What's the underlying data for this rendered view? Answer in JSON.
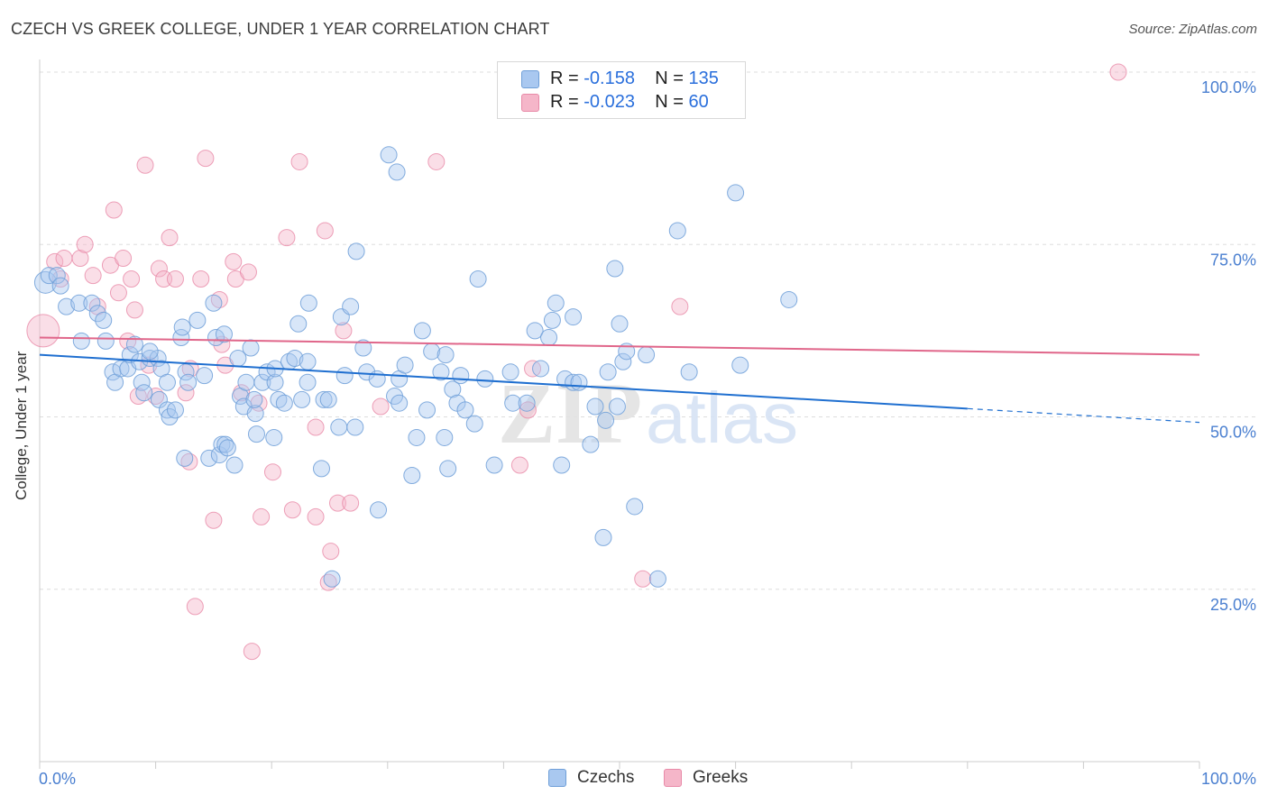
{
  "header": {
    "title": "CZECH VS GREEK COLLEGE, UNDER 1 YEAR CORRELATION CHART",
    "source": "Source: ZipAtlas.com"
  },
  "legend_top": {
    "czechs": {
      "r_label": "R = ",
      "r_value": "-0.158",
      "n_label": "N = ",
      "n_value": "135"
    },
    "greeks": {
      "r_label": "R = ",
      "r_value": "-0.023",
      "n_label": "N = ",
      "n_value": "60"
    }
  },
  "legend_bottom": {
    "czechs": "Czechs",
    "greeks": "Greeks"
  },
  "watermark": {
    "zip": "ZIP",
    "atlas": "atlas"
  },
  "colors": {
    "czech_fill": "#a9c8f0",
    "czech_stroke": "#6f9fd8",
    "czech_line": "#1f6fd0",
    "greek_fill": "#f5b6c9",
    "greek_stroke": "#e88aa8",
    "greek_line": "#e0668a",
    "tick_label": "#4a7fd0",
    "grid": "#dddddd"
  },
  "chart_data": {
    "type": "scatter",
    "title": "CZECH VS GREEK COLLEGE, UNDER 1 YEAR CORRELATION CHART",
    "xlabel": "",
    "ylabel": "College, Under 1 year",
    "xlim": [
      0,
      100
    ],
    "ylim": [
      0,
      100
    ],
    "x_tick_labels": [
      {
        "value": 0,
        "label": "0.0%"
      },
      {
        "value": 100,
        "label": "100.0%"
      }
    ],
    "y_tick_labels": [
      {
        "value": 25,
        "label": "25.0%"
      },
      {
        "value": 50,
        "label": "50.0%"
      },
      {
        "value": 75,
        "label": "75.0%"
      },
      {
        "value": 100,
        "label": "100.0%"
      }
    ],
    "series": [
      {
        "name": "Czechs",
        "r": -0.158,
        "n": 135,
        "trend": {
          "x0": 0,
          "y0": 59.0,
          "x1": 80,
          "y1": 51.2,
          "dash_to_x": 100,
          "dash_to_y": 49.2
        },
        "points": [
          [
            0.5,
            69.5
          ],
          [
            0.8,
            70.5
          ],
          [
            1.5,
            70.5
          ],
          [
            1.8,
            69
          ],
          [
            2.3,
            66
          ],
          [
            3.4,
            66.5
          ],
          [
            4.5,
            66.5
          ],
          [
            5,
            65
          ],
          [
            5.5,
            64
          ],
          [
            3.6,
            61
          ],
          [
            5.7,
            61
          ],
          [
            6.3,
            56.5
          ],
          [
            6.5,
            55
          ],
          [
            7,
            57
          ],
          [
            7.6,
            57
          ],
          [
            7.8,
            59
          ],
          [
            8.2,
            60.5
          ],
          [
            8.6,
            58
          ],
          [
            8.8,
            55
          ],
          [
            9,
            53.5
          ],
          [
            9.5,
            58.5
          ],
          [
            10.2,
            58.5
          ],
          [
            10.5,
            57
          ],
          [
            10.3,
            52.5
          ],
          [
            11,
            55
          ],
          [
            11,
            51
          ],
          [
            11.2,
            50
          ],
          [
            11.7,
            51
          ],
          [
            12.2,
            61.5
          ],
          [
            12.3,
            63
          ],
          [
            12.6,
            56.5
          ],
          [
            12.8,
            55
          ],
          [
            13.6,
            64
          ],
          [
            14.2,
            56
          ],
          [
            14.6,
            44
          ],
          [
            15,
            66.5
          ],
          [
            15.2,
            61.5
          ],
          [
            15.5,
            44.5
          ],
          [
            15.7,
            46
          ],
          [
            15.9,
            62
          ],
          [
            16,
            46
          ],
          [
            16.2,
            45.5
          ],
          [
            16.8,
            43
          ],
          [
            17.1,
            58.5
          ],
          [
            17.3,
            53
          ],
          [
            17.6,
            51.5
          ],
          [
            18.2,
            60
          ],
          [
            17.8,
            55
          ],
          [
            18.6,
            50.5
          ],
          [
            18.7,
            47.5
          ],
          [
            19.2,
            55
          ],
          [
            19.6,
            56.5
          ],
          [
            20.2,
            47
          ],
          [
            20.3,
            55
          ],
          [
            20.6,
            52.5
          ],
          [
            20.3,
            57
          ],
          [
            21.1,
            52
          ],
          [
            21.5,
            58
          ],
          [
            22,
            58.5
          ],
          [
            22.3,
            63.5
          ],
          [
            22.6,
            52.5
          ],
          [
            23.1,
            58
          ],
          [
            23.1,
            55
          ],
          [
            23.2,
            66.5
          ],
          [
            24.3,
            42.5
          ],
          [
            24.5,
            52.5
          ],
          [
            24.9,
            52.5
          ],
          [
            25.2,
            26.5
          ],
          [
            25.8,
            48.5
          ],
          [
            26,
            64.5
          ],
          [
            26.3,
            56
          ],
          [
            26.8,
            66
          ],
          [
            27.3,
            74
          ],
          [
            27.9,
            60
          ],
          [
            28.2,
            56.5
          ],
          [
            29.1,
            55.5
          ],
          [
            29.2,
            36.5
          ],
          [
            30.1,
            88
          ],
          [
            30.6,
            53
          ],
          [
            31,
            52
          ],
          [
            30.8,
            85.5
          ],
          [
            31,
            55.5
          ],
          [
            31.5,
            57.5
          ],
          [
            32.1,
            41.5
          ],
          [
            32.5,
            47
          ],
          [
            33,
            62.5
          ],
          [
            33.4,
            51
          ],
          [
            33.8,
            59.5
          ],
          [
            34.6,
            56.5
          ],
          [
            34.9,
            47
          ],
          [
            35.2,
            42.5
          ],
          [
            35.6,
            54
          ],
          [
            36,
            52
          ],
          [
            36.3,
            56
          ],
          [
            36.7,
            51
          ],
          [
            37.5,
            49
          ],
          [
            37.8,
            70
          ],
          [
            38.4,
            55.5
          ],
          [
            39.2,
            43
          ],
          [
            40.6,
            56.5
          ],
          [
            40.8,
            52
          ],
          [
            42.7,
            62.5
          ],
          [
            43.2,
            57
          ],
          [
            43.9,
            61.5
          ],
          [
            44.2,
            64
          ],
          [
            44.5,
            66.5
          ],
          [
            45,
            43
          ],
          [
            45.3,
            55.5
          ],
          [
            46,
            64.5
          ],
          [
            46,
            55
          ],
          [
            47.5,
            46
          ],
          [
            47.9,
            51.5
          ],
          [
            48.8,
            49.5
          ],
          [
            49,
            56.5
          ],
          [
            49.8,
            51.5
          ],
          [
            48.6,
            32.5
          ],
          [
            49.6,
            71.5
          ],
          [
            50,
            63.5
          ],
          [
            50.3,
            58
          ],
          [
            50.6,
            59.5
          ],
          [
            51.3,
            37
          ],
          [
            52.3,
            59
          ],
          [
            53.3,
            26.5
          ],
          [
            55,
            77
          ],
          [
            56,
            56.5
          ],
          [
            60,
            82.5
          ],
          [
            60.4,
            57.5
          ],
          [
            64.6,
            67
          ],
          [
            12.5,
            44
          ],
          [
            18.5,
            52.5
          ],
          [
            27.2,
            48.5
          ],
          [
            35,
            59
          ],
          [
            42,
            52
          ],
          [
            46.5,
            55
          ],
          [
            9.5,
            59.5
          ]
        ]
      },
      {
        "name": "Greeks",
        "r": -0.023,
        "n": 60,
        "trend": {
          "x0": 0,
          "y0": 61.5,
          "x1": 100,
          "y1": 59.0
        },
        "points": [
          [
            0.3,
            62.5
          ],
          [
            1.3,
            72.5
          ],
          [
            1.8,
            70
          ],
          [
            2.1,
            73
          ],
          [
            3.5,
            73
          ],
          [
            3.9,
            75
          ],
          [
            4.6,
            70.5
          ],
          [
            5,
            66
          ],
          [
            6.4,
            80
          ],
          [
            6.1,
            72
          ],
          [
            6.8,
            68
          ],
          [
            7.2,
            73
          ],
          [
            7.6,
            61
          ],
          [
            7.9,
            70
          ],
          [
            8.2,
            65.5
          ],
          [
            8.5,
            53
          ],
          [
            9.1,
            86.5
          ],
          [
            9.4,
            57.5
          ],
          [
            10,
            53
          ],
          [
            10.3,
            71.5
          ],
          [
            10.7,
            70
          ],
          [
            11.2,
            76
          ],
          [
            11.7,
            70
          ],
          [
            12.6,
            53.5
          ],
          [
            13,
            57
          ],
          [
            12.9,
            43.5
          ],
          [
            13.4,
            22.5
          ],
          [
            13.9,
            70
          ],
          [
            14.3,
            87.5
          ],
          [
            15,
            35
          ],
          [
            15.5,
            67
          ],
          [
            15.7,
            60.5
          ],
          [
            16,
            57.5
          ],
          [
            16.7,
            72.5
          ],
          [
            16.9,
            70
          ],
          [
            17.4,
            53.5
          ],
          [
            18,
            71
          ],
          [
            18.3,
            16
          ],
          [
            18.9,
            52
          ],
          [
            19.1,
            35.5
          ],
          [
            20.1,
            42
          ],
          [
            21.3,
            76
          ],
          [
            21.8,
            36.5
          ],
          [
            22.4,
            87
          ],
          [
            23.8,
            35.5
          ],
          [
            23.8,
            48.5
          ],
          [
            24.6,
            77
          ],
          [
            24.9,
            26
          ],
          [
            25.1,
            30.5
          ],
          [
            25.7,
            37.5
          ],
          [
            26.2,
            62.5
          ],
          [
            26.8,
            37.5
          ],
          [
            29.4,
            51.5
          ],
          [
            34.2,
            87
          ],
          [
            41.4,
            43
          ],
          [
            42.1,
            51
          ],
          [
            42.5,
            57
          ],
          [
            52,
            26.5
          ],
          [
            55.2,
            66
          ],
          [
            93,
            100
          ]
        ]
      }
    ]
  }
}
